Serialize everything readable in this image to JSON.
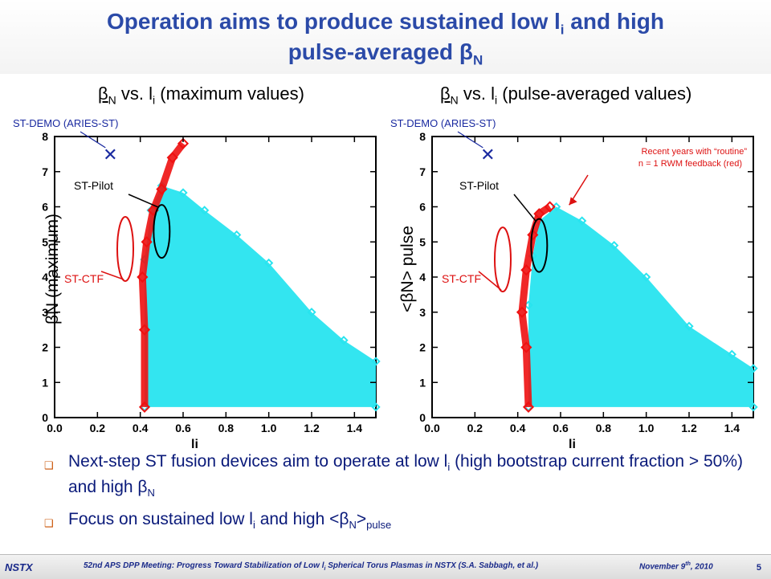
{
  "slide": {
    "title_line1": "Operation aims to produce sustained low l",
    "title_line1_sub": "i",
    "title_line1_end": " and high",
    "title_line2": "pulse-averaged ",
    "title_beta": "β",
    "title_beta_sub": "N"
  },
  "subtitles": {
    "left": {
      "beta": "β",
      "sub": "N",
      "text": " vs. l",
      "isub": "i",
      "rest": " (maximum values)"
    },
    "right": {
      "beta": "β",
      "sub": "N",
      "text": " vs. l",
      "isub": "i",
      "rest": " (pulse-averaged values)"
    }
  },
  "chart_data": [
    {
      "type": "scatter",
      "title": "",
      "xlabel": "li",
      "ylabel": "βN (maximum)",
      "xlim": [
        0.0,
        1.5
      ],
      "ylim": [
        0,
        8
      ],
      "x_ticks": [
        "0.0",
        "0.2",
        "0.4",
        "0.6",
        "0.8",
        "1.0",
        "1.2",
        "1.4"
      ],
      "y_ticks": [
        "0",
        "1",
        "2",
        "3",
        "4",
        "5",
        "6",
        "7",
        "8"
      ],
      "series": [
        {
          "color": "#28e4ef",
          "envelope": [
            [
              0.42,
              0.3
            ],
            [
              0.42,
              4.5
            ],
            [
              0.45,
              5.9
            ],
            [
              0.5,
              6.6
            ],
            [
              0.6,
              6.4
            ],
            [
              0.7,
              5.9
            ],
            [
              0.85,
              5.2
            ],
            [
              1.0,
              4.4
            ],
            [
              1.2,
              3.0
            ],
            [
              1.35,
              2.2
            ],
            [
              1.5,
              1.6
            ],
            [
              1.5,
              0.3
            ]
          ]
        },
        {
          "color": "#ee1111",
          "band": [
            [
              0.42,
              0.3
            ],
            [
              0.42,
              2.5
            ],
            [
              0.41,
              4.0
            ],
            [
              0.43,
              5.0
            ],
            [
              0.46,
              5.9
            ],
            [
              0.5,
              6.5
            ],
            [
              0.55,
              7.4
            ],
            [
              0.6,
              7.8
            ]
          ]
        }
      ],
      "annotations": {
        "demo": "ST-DEMO (ARIES-ST)",
        "pilot": "ST-Pilot",
        "ctf": "ST-CTF",
        "demo_point": {
          "x": 0.26,
          "y": 7.5
        }
      }
    },
    {
      "type": "scatter",
      "title": "",
      "xlabel": "li",
      "ylabel": "<βN> pulse",
      "xlim": [
        0.0,
        1.5
      ],
      "ylim": [
        0,
        8
      ],
      "x_ticks": [
        "0.0",
        "0.2",
        "0.4",
        "0.6",
        "0.8",
        "1.0",
        "1.2",
        "1.4"
      ],
      "y_ticks": [
        "0",
        "1",
        "2",
        "3",
        "4",
        "5",
        "6",
        "7",
        "8"
      ],
      "series": [
        {
          "color": "#28e4ef",
          "envelope": [
            [
              0.45,
              0.3
            ],
            [
              0.45,
              3.2
            ],
            [
              0.47,
              4.6
            ],
            [
              0.5,
              5.6
            ],
            [
              0.58,
              6.0
            ],
            [
              0.7,
              5.6
            ],
            [
              0.85,
              4.9
            ],
            [
              1.0,
              4.0
            ],
            [
              1.2,
              2.6
            ],
            [
              1.4,
              1.8
            ],
            [
              1.5,
              1.4
            ],
            [
              1.5,
              0.3
            ]
          ]
        },
        {
          "color": "#ee1111",
          "band": [
            [
              0.45,
              0.3
            ],
            [
              0.44,
              2.0
            ],
            [
              0.42,
              3.0
            ],
            [
              0.44,
              4.2
            ],
            [
              0.47,
              5.2
            ],
            [
              0.5,
              5.8
            ],
            [
              0.55,
              6.0
            ]
          ]
        }
      ],
      "annotations": {
        "demo": "ST-DEMO (ARIES-ST)",
        "pilot": "ST-Pilot",
        "ctf": "ST-CTF",
        "recent": "Recent years with “routine” n = 1 RWM feedback (red)",
        "recent_l1": "Recent years with “routine”",
        "recent_l2": "n = 1 RWM feedback (red)",
        "demo_point": {
          "x": 0.26,
          "y": 7.5
        }
      }
    }
  ],
  "bullets": [
    {
      "a": "Next-step ST fusion devices aim to operate at low l",
      "a_sub": "i",
      "b": " (high bootstrap current fraction > 50%) and high ",
      "beta": "β",
      "beta_sub": "N"
    },
    {
      "a": "Focus on sustained low l",
      "a_sub": "i",
      "b": " and high <",
      "beta": "β",
      "beta_sub": "N",
      "c": ">",
      "c_sub": "pulse"
    }
  ],
  "footer": {
    "logo": "NSTX",
    "citation": "52nd APS DPP Meeting: Progress Toward Stabilization of Low l",
    "citation_sub": "i",
    "citation_end": " Spherical Torus Plasmas in NSTX (S.A. Sabbagh, et al.)",
    "date": "November 9",
    "date_sup": "th",
    "date_end": ", 2010",
    "page": "5"
  },
  "colors": {
    "title": "#2b4aa8",
    "red": "#ee1111",
    "cyan": "#28e4ef",
    "bullet_text": "#0a1a7a",
    "marker": "#c85000"
  }
}
